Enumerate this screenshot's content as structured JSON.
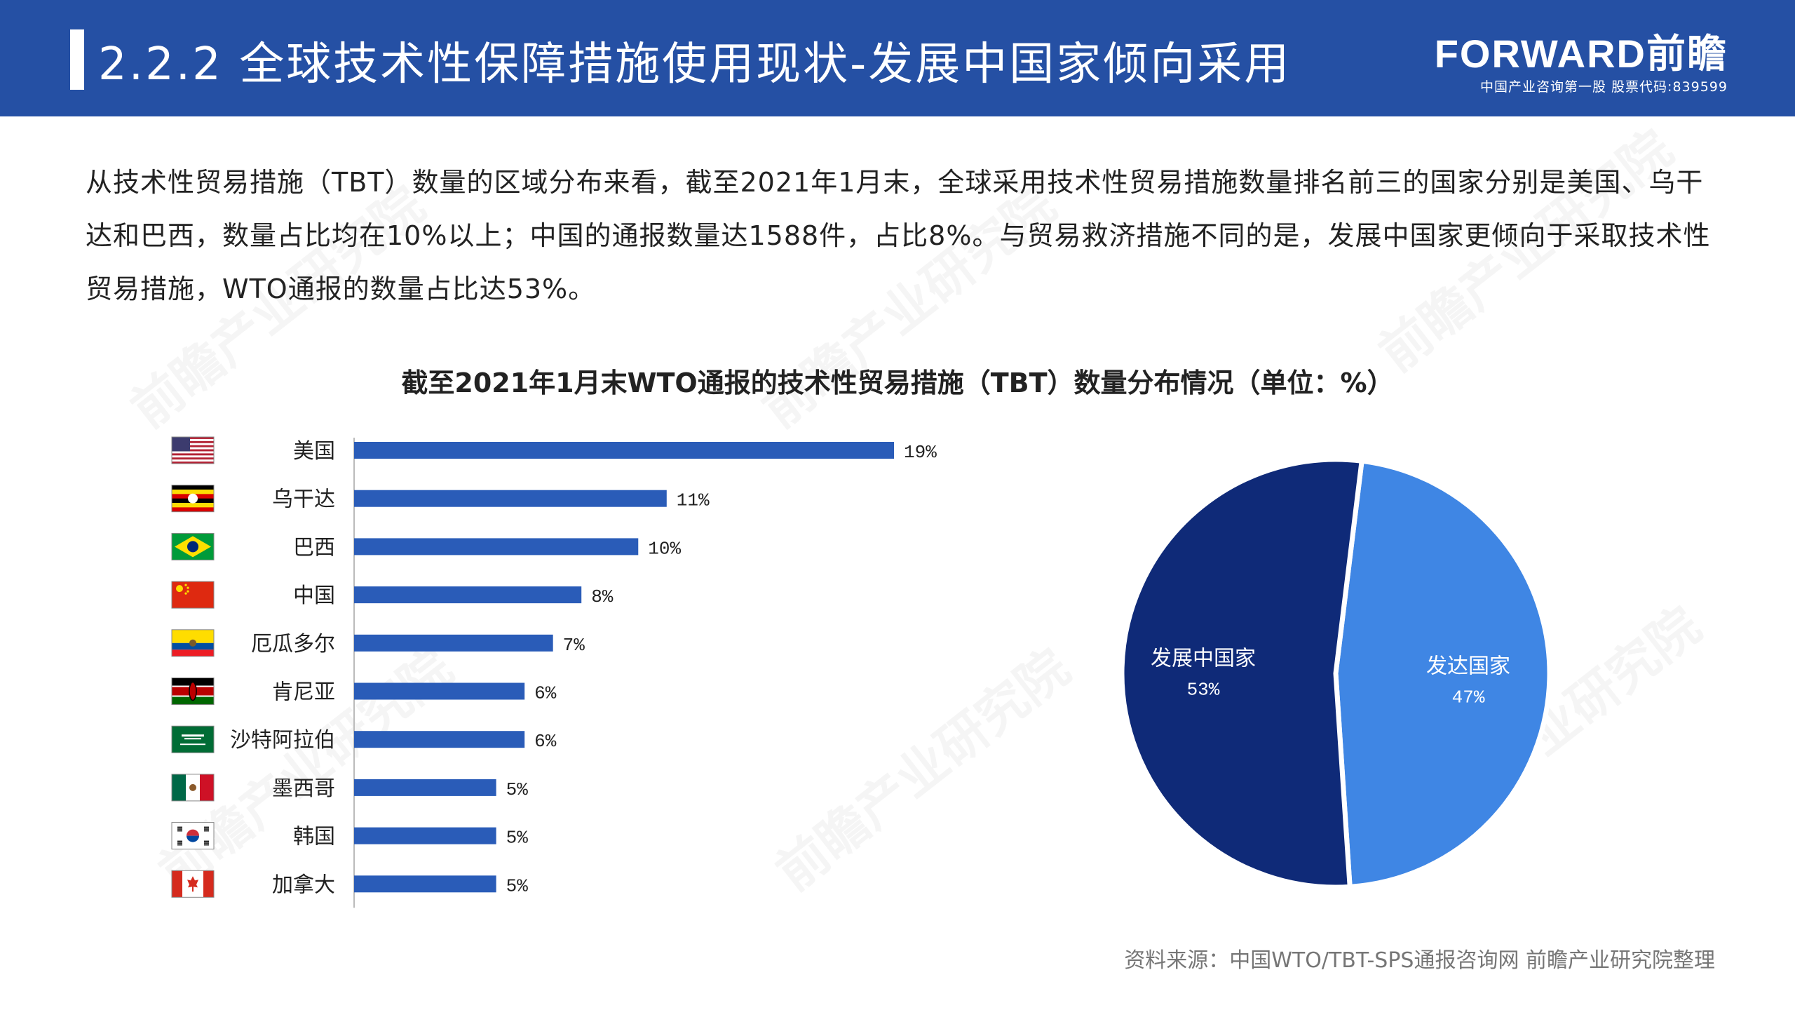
{
  "header": {
    "title": "2.2.2 全球技术性保障措施使用现状-发展中国家倾向采用",
    "logo_text": "FORWARD前瞻",
    "logo_subtitle": "中国产业咨询第一股 股票代码:839599"
  },
  "intro": {
    "paragraph": "从技术性贸易措施（TBT）数量的区域分布来看，截至2021年1月末，全球采用技术性贸易措施数量排名前三的国家分别是美国、乌干达和巴西，数量占比均在10%以上；中国的通报数量达1588件，占比8%。与贸易救济措施不同的是，发展中国家更倾向于采取技术性贸易措施，WTO通报的数量占比达53%。"
  },
  "source": "资料来源：中国WTO/TBT-SPS通报咨询网 前瞻产业研究院整理",
  "watermark": "前瞻产业研究院",
  "colors": {
    "header_bg": "#2550a4",
    "bar": "#2a5cb8",
    "pie_developing": "#0f2a78",
    "pie_developed": "#3f86e4"
  },
  "chart_data": [
    {
      "type": "bar",
      "orientation": "horizontal",
      "title": "截至2021年1月末WTO通报的技术性贸易措施（TBT）数量分布情况（单位：%）",
      "categories": [
        "美国",
        "乌干达",
        "巴西",
        "中国",
        "厄瓜多尔",
        "肯尼亚",
        "沙特阿拉伯",
        "墨西哥",
        "韩国",
        "加拿大"
      ],
      "values": [
        19,
        11,
        10,
        8,
        7,
        6,
        6,
        5,
        5,
        5
      ],
      "value_labels": [
        "19%",
        "11%",
        "10%",
        "8%",
        "7%",
        "6%",
        "6%",
        "5%",
        "5%",
        "5%"
      ],
      "flags": [
        "usa-flag-icon",
        "uganda-flag-icon",
        "brazil-flag-icon",
        "china-flag-icon",
        "ecuador-flag-icon",
        "kenya-flag-icon",
        "saudi-arabia-flag-icon",
        "mexico-flag-icon",
        "korea-flag-icon",
        "canada-flag-icon"
      ],
      "xlim": [
        0,
        20
      ]
    },
    {
      "type": "pie",
      "slices": [
        {
          "label": "发展中国家",
          "value": 53,
          "value_label": "53%",
          "color": "#0f2a78"
        },
        {
          "label": "发达国家",
          "value": 47,
          "value_label": "47%",
          "color": "#3f86e4"
        }
      ]
    }
  ]
}
